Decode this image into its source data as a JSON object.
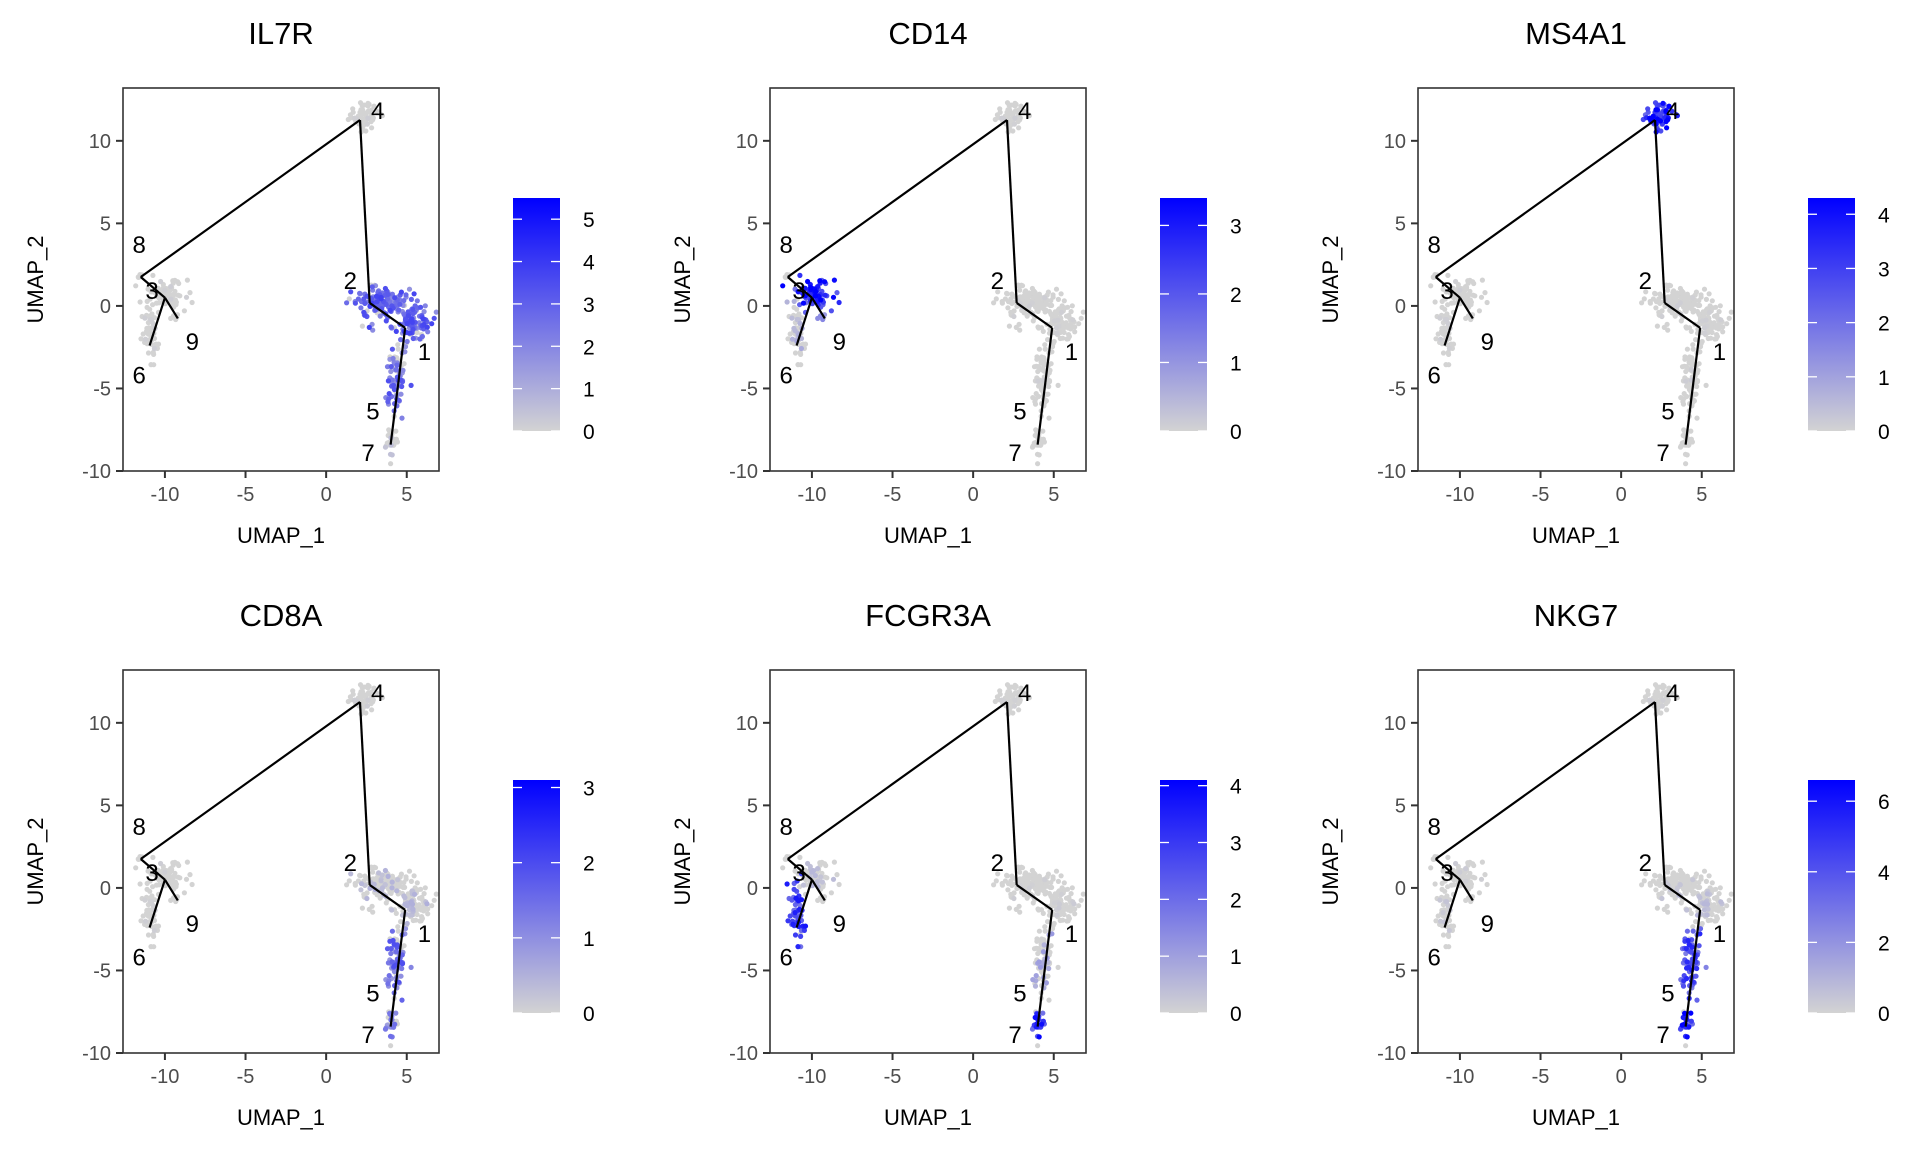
{
  "chart_data": {
    "type": "scatter",
    "description_kind": "UMAP feature plots with trajectory",
    "xlabel": "UMAP_1",
    "ylabel": "UMAP_2",
    "xlim": [
      -12.6,
      7.0
    ],
    "ylim": [
      -10.0,
      13.2
    ],
    "xticks": [
      -10,
      -5,
      0,
      5
    ],
    "yticks": [
      -10,
      -5,
      0,
      5,
      10
    ],
    "low_color": "#D3D3D3",
    "high_color": "#0000FF",
    "trajectory": {
      "nodes": {
        "8": [
          -11.5,
          1.75
        ],
        "4": [
          2.1,
          11.26
        ],
        "2": [
          2.7,
          0.18
        ],
        "1": [
          4.9,
          -1.33
        ],
        "7": [
          4.0,
          -8.4
        ],
        "3": [
          -10.0,
          0.5
        ],
        "9": [
          -9.2,
          -0.76
        ],
        "6": [
          -10.95,
          -2.4
        ]
      },
      "edges": [
        [
          "8",
          "4"
        ],
        [
          "4",
          "2"
        ],
        [
          "2",
          "1"
        ],
        [
          "1",
          "7"
        ],
        [
          "8",
          "3"
        ],
        [
          "3",
          "9"
        ],
        [
          "3",
          "6"
        ]
      ]
    },
    "cluster_labels": [
      {
        "label": "8",
        "x": -11.6,
        "y": 3.7
      },
      {
        "label": "3",
        "x": -10.8,
        "y": 0.9
      },
      {
        "label": "9",
        "x": -8.3,
        "y": -2.2
      },
      {
        "label": "6",
        "x": -11.6,
        "y": -4.2
      },
      {
        "label": "4",
        "x": 3.2,
        "y": 11.8
      },
      {
        "label": "2",
        "x": 1.5,
        "y": 1.5
      },
      {
        "label": "1",
        "x": 6.1,
        "y": -2.8
      },
      {
        "label": "5",
        "x": 2.9,
        "y": -6.4
      },
      {
        "label": "7",
        "x": 2.6,
        "y": -8.9
      }
    ],
    "clusters": [
      {
        "id": "4",
        "cx": 2.3,
        "cy": 11.5,
        "sx": 0.45,
        "sy": 0.4,
        "n": 70
      },
      {
        "id": "3",
        "cx": -9.9,
        "cy": 0.7,
        "sx": 0.55,
        "sy": 0.45,
        "n": 80
      },
      {
        "id": "6",
        "cx": -10.9,
        "cy": -1.5,
        "sx": 0.25,
        "sy": 0.85,
        "n": 55
      },
      {
        "id": "8",
        "cx": -11.6,
        "cy": 1.8,
        "sx": 0.1,
        "sy": 0.1,
        "n": 5
      },
      {
        "id": "9",
        "cx": -9.3,
        "cy": -0.6,
        "sx": 0.1,
        "sy": 0.1,
        "n": 5
      },
      {
        "id": "2",
        "cx": 3.2,
        "cy": 0.2,
        "sx": 0.9,
        "sy": 0.5,
        "n": 140
      },
      {
        "id": "1",
        "cx": 5.3,
        "cy": -1.0,
        "sx": 0.6,
        "sy": 0.55,
        "n": 110
      },
      {
        "id": "5",
        "cx": 4.3,
        "cy": -4.5,
        "sx": 0.35,
        "sy": 1.1,
        "n": 75
      },
      {
        "id": "7",
        "cx": 4.0,
        "cy": -8.1,
        "sx": 0.2,
        "sy": 0.5,
        "n": 25
      }
    ],
    "panels": [
      {
        "title": "IL7R",
        "max": 5.5,
        "legend_ticks": [
          0,
          1,
          2,
          3,
          4,
          5
        ],
        "expression": {
          "2": 0.5,
          "1": 0.5,
          "5": 0.45,
          "7": 0.1,
          "4": 0.02,
          "3": 0.03,
          "6": 0.02,
          "8": 0,
          "9": 0
        }
      },
      {
        "title": "CD14",
        "max": 3.4,
        "legend_ticks": [
          0,
          1,
          2,
          3
        ],
        "expression": {
          "3": 0.75,
          "6": 0.15,
          "9": 0.3,
          "8": 0.1,
          "2": 0.02,
          "1": 0.02,
          "5": 0.02,
          "7": 0,
          "4": 0.02
        }
      },
      {
        "title": "MS4A1",
        "max": 4.3,
        "legend_ticks": [
          0,
          1,
          2,
          3,
          4
        ],
        "expression": {
          "4": 0.75,
          "2": 0.02,
          "1": 0.02,
          "5": 0.03,
          "3": 0.02,
          "6": 0.02,
          "7": 0,
          "8": 0,
          "9": 0
        }
      },
      {
        "title": "CD8A",
        "max": 3.1,
        "legend_ticks": [
          0,
          1,
          2,
          3
        ],
        "expression": {
          "5": 0.45,
          "7": 0.35,
          "2": 0.12,
          "1": 0.12,
          "4": 0.02,
          "3": 0.02,
          "6": 0.02,
          "8": 0,
          "9": 0
        }
      },
      {
        "title": "FCGR3A",
        "max": 4.1,
        "legend_ticks": [
          0,
          1,
          2,
          3,
          4
        ],
        "expression": {
          "6": 0.65,
          "7": 0.7,
          "5": 0.2,
          "3": 0.1,
          "2": 0.02,
          "1": 0.03,
          "4": 0.02,
          "8": 0,
          "9": 0
        }
      },
      {
        "title": "NKG7",
        "max": 6.6,
        "legend_ticks": [
          0,
          2,
          4,
          6
        ],
        "expression": {
          "5": 0.6,
          "7": 0.75,
          "1": 0.1,
          "2": 0.05,
          "6": 0.05,
          "3": 0.03,
          "4": 0.02,
          "8": 0,
          "9": 0
        }
      }
    ]
  }
}
